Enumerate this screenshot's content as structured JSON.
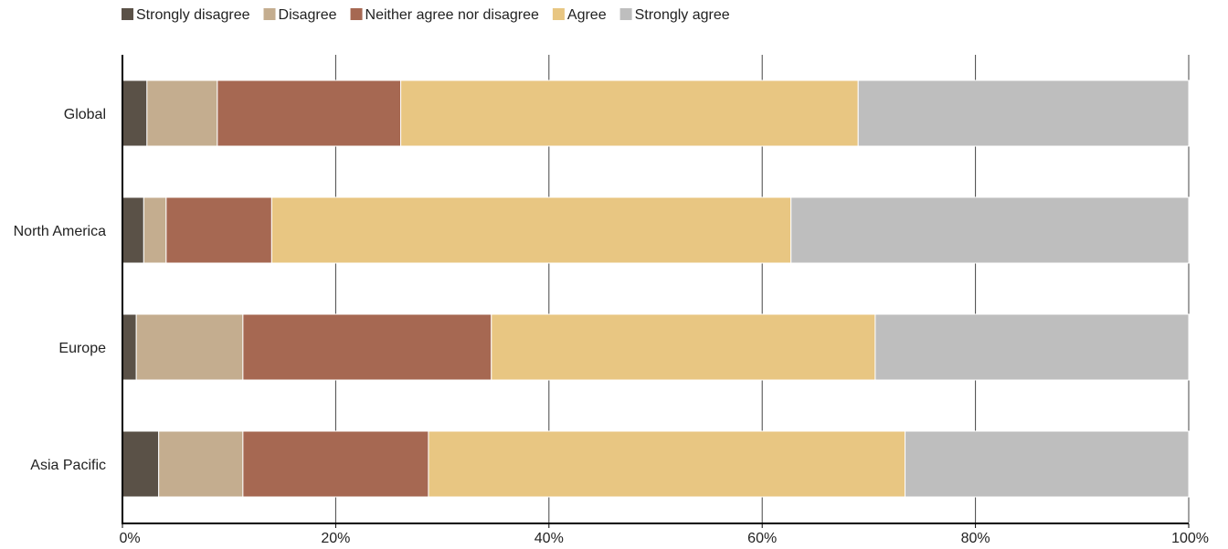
{
  "chart_data": {
    "type": "bar",
    "orientation": "horizontal",
    "stacked": true,
    "title": "",
    "xlabel": "",
    "ylabel": "",
    "xlim": [
      0,
      100
    ],
    "x_ticks": [
      0,
      20,
      40,
      60,
      80,
      100
    ],
    "x_tick_labels": [
      "0%",
      "20%",
      "40%",
      "60%",
      "80%",
      "100%"
    ],
    "grid": "vertical",
    "legend_position": "top-left",
    "categories": [
      "Global",
      "North America",
      "Europe",
      "Asia Pacific"
    ],
    "series": [
      {
        "name": "Strongly disagree",
        "color": "#5a5147",
        "values": [
          2.3,
          2.0,
          1.3,
          3.4
        ]
      },
      {
        "name": "Disagree",
        "color": "#c4ad8f",
        "values": [
          6.6,
          2.1,
          10.0,
          7.9
        ]
      },
      {
        "name": "Neither agree nor disagree",
        "color": "#a66852",
        "values": [
          17.2,
          9.9,
          23.3,
          17.4
        ]
      },
      {
        "name": "Agree",
        "color": "#e8c682",
        "values": [
          42.9,
          48.7,
          36.0,
          44.7
        ]
      },
      {
        "name": "Strongly agree",
        "color": "#bebebe",
        "values": [
          31.0,
          37.3,
          29.4,
          26.6
        ]
      }
    ]
  }
}
